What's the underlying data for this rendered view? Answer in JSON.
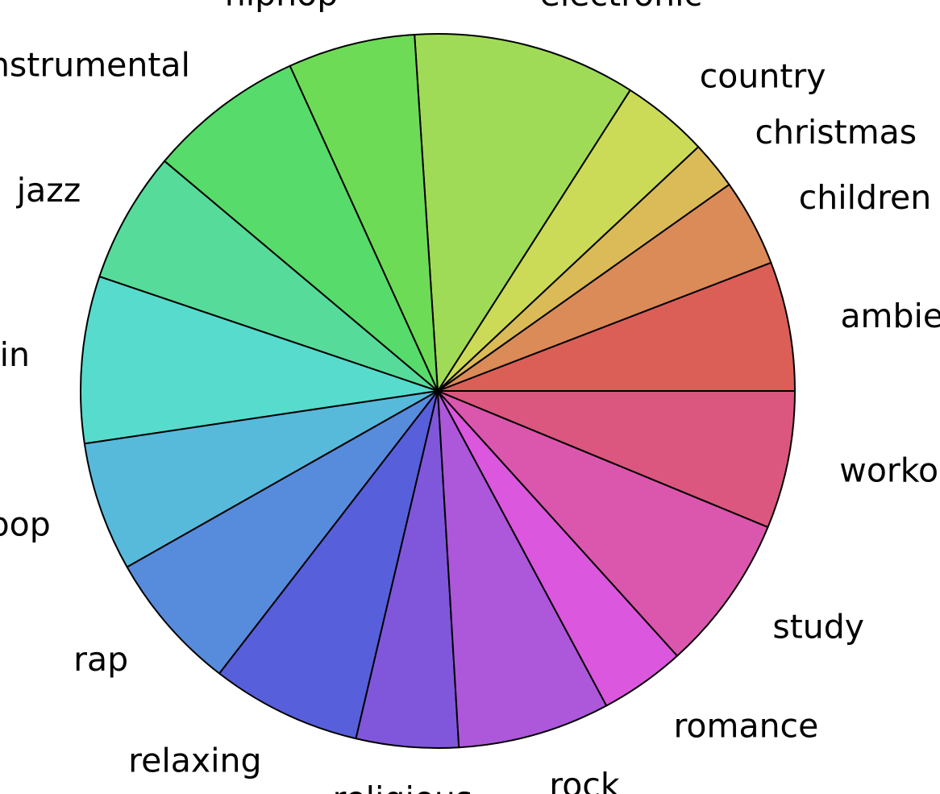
{
  "chart_data": {
    "type": "pie",
    "title": "",
    "start_angle_deg": 0,
    "direction": "counterclockwise",
    "categories": [
      "ambient",
      "children",
      "christmas",
      "country",
      "electronic",
      "hiphop",
      "instrumental",
      "jazz",
      "latin",
      "pop",
      "rap",
      "relaxing",
      "religious",
      "rock",
      "romance",
      "study",
      "workout"
    ],
    "values": [
      6.2,
      4.2,
      2.3,
      4.2,
      10.7,
      6.1,
      7.5,
      6.3,
      8.0,
      6.2,
      6.7,
      7.2,
      4.9,
      7.3,
      4.1,
      7.5,
      6.6
    ],
    "colors": [
      "#db5f57",
      "#db8b57",
      "#dbbb57",
      "#cbdb57",
      "#a0db57",
      "#6edb57",
      "#57db6a",
      "#57db9a",
      "#57dbcd",
      "#57badb",
      "#578bdb",
      "#575fdb",
      "#8057db",
      "#ad57db",
      "#db57dd",
      "#db57ad",
      "#db577f"
    ]
  }
}
